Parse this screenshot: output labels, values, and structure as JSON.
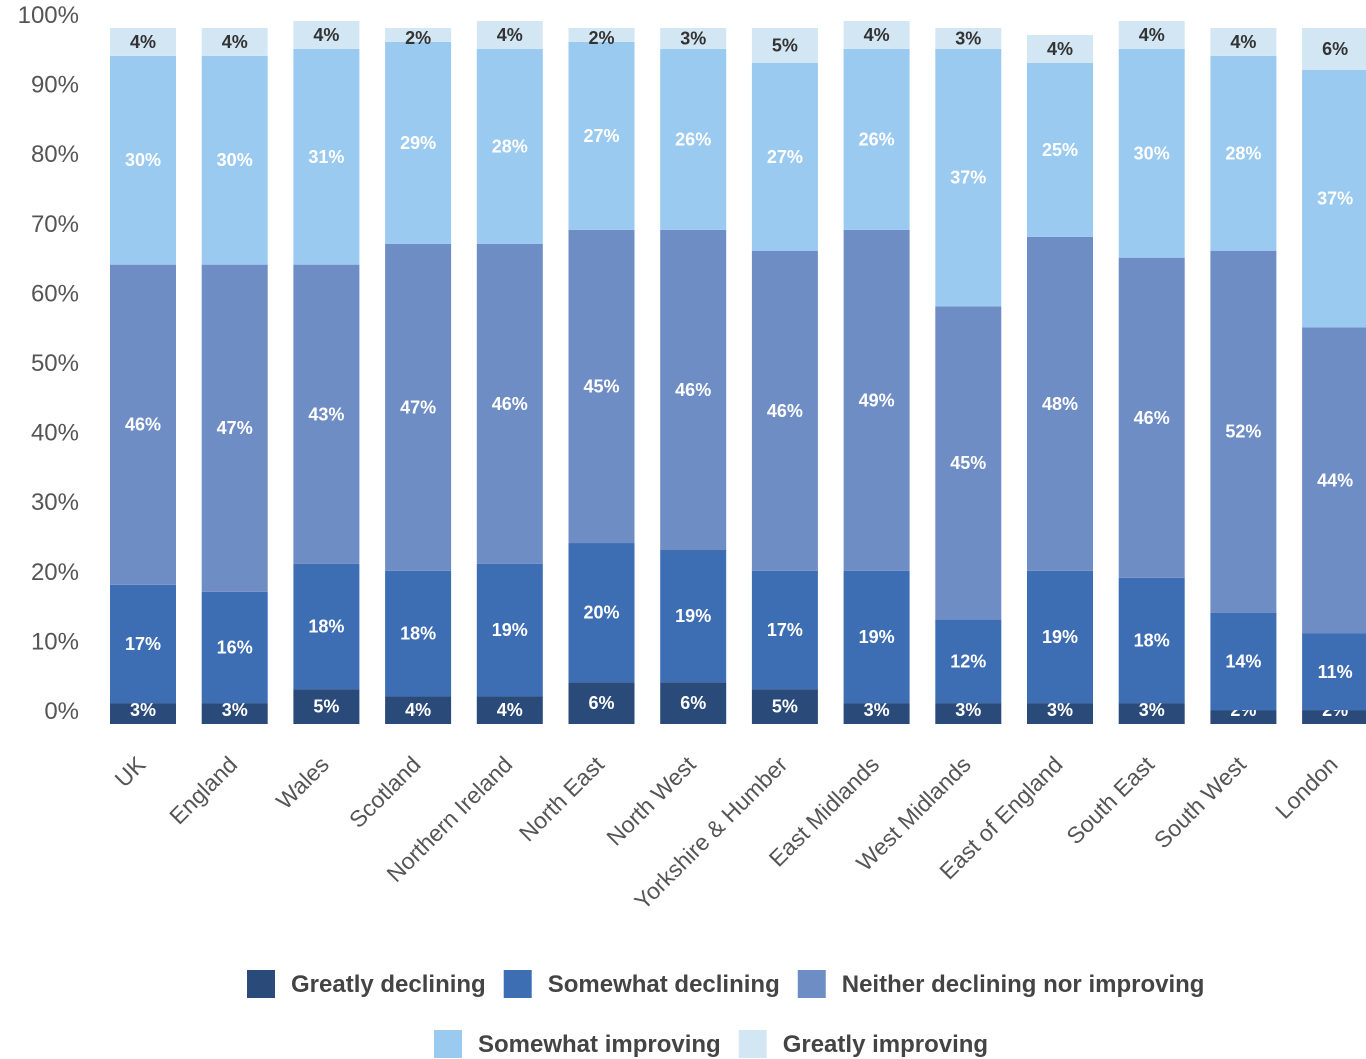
{
  "chart_data": {
    "type": "bar",
    "stacked": true,
    "categories": [
      "UK",
      "England",
      "Wales",
      "Scotland",
      "Northern Ireland",
      "North East",
      "North West",
      "Yorkshire & Humber",
      "East Midlands",
      "West Midlands",
      "East of England",
      "South East",
      "South West",
      "London"
    ],
    "series": [
      {
        "name": "Greatly declining",
        "color": "#2a4a7a",
        "values": [
          3,
          3,
          5,
          4,
          4,
          6,
          6,
          5,
          3,
          3,
          3,
          3,
          2,
          2
        ],
        "labels": [
          "3%",
          "3%",
          "5%",
          "4%",
          "4%",
          "6%",
          "6%",
          "5%",
          "3%",
          "3%",
          "3%",
          "3%",
          "2%",
          "2%"
        ]
      },
      {
        "name": "Somewhat declining",
        "color": "#3d6db3",
        "values": [
          17,
          16,
          18,
          18,
          19,
          20,
          19,
          17,
          19,
          12,
          19,
          18,
          14,
          11
        ],
        "labels": [
          "17%",
          "16%",
          "18%",
          "18%",
          "19%",
          "20%",
          "19%",
          "17%",
          "19%",
          "12%",
          "19%",
          "18%",
          "14%",
          "11%"
        ]
      },
      {
        "name": "Neither declining nor improving",
        "color": "#6f8dc5",
        "values": [
          46,
          47,
          43,
          47,
          46,
          45,
          46,
          46,
          49,
          45,
          48,
          46,
          52,
          44
        ],
        "labels": [
          "46%",
          "47%",
          "43%",
          "47%",
          "46%",
          "45%",
          "46%",
          "46%",
          "49%",
          "45%",
          "48%",
          "46%",
          "52%",
          "44%"
        ]
      },
      {
        "name": "Somewhat improving",
        "color": "#9bcaf0",
        "values": [
          30,
          30,
          31,
          29,
          28,
          27,
          26,
          27,
          26,
          37,
          25,
          30,
          28,
          37
        ],
        "labels": [
          "30%",
          "30%",
          "31%",
          "29%",
          "28%",
          "27%",
          "26%",
          "27%",
          "26%",
          "37%",
          "25%",
          "30%",
          "28%",
          "37%"
        ]
      },
      {
        "name": "Greatly improving",
        "color": "#d3e6f4",
        "values": [
          4,
          4,
          4,
          2,
          4,
          2,
          3,
          5,
          4,
          3,
          4,
          4,
          4,
          6
        ],
        "labels": [
          "4%",
          "4%",
          "4%",
          "2%",
          "4%",
          "2%",
          "3%",
          "5%",
          "4%",
          "3%",
          "4%",
          "4%",
          "4%",
          "6%"
        ]
      }
    ],
    "yticks": [
      "0%",
      "10%",
      "20%",
      "30%",
      "40%",
      "50%",
      "60%",
      "70%",
      "80%",
      "90%",
      "100%"
    ],
    "ylim": [
      0,
      100
    ],
    "grid": false,
    "legend_position": "bottom"
  }
}
